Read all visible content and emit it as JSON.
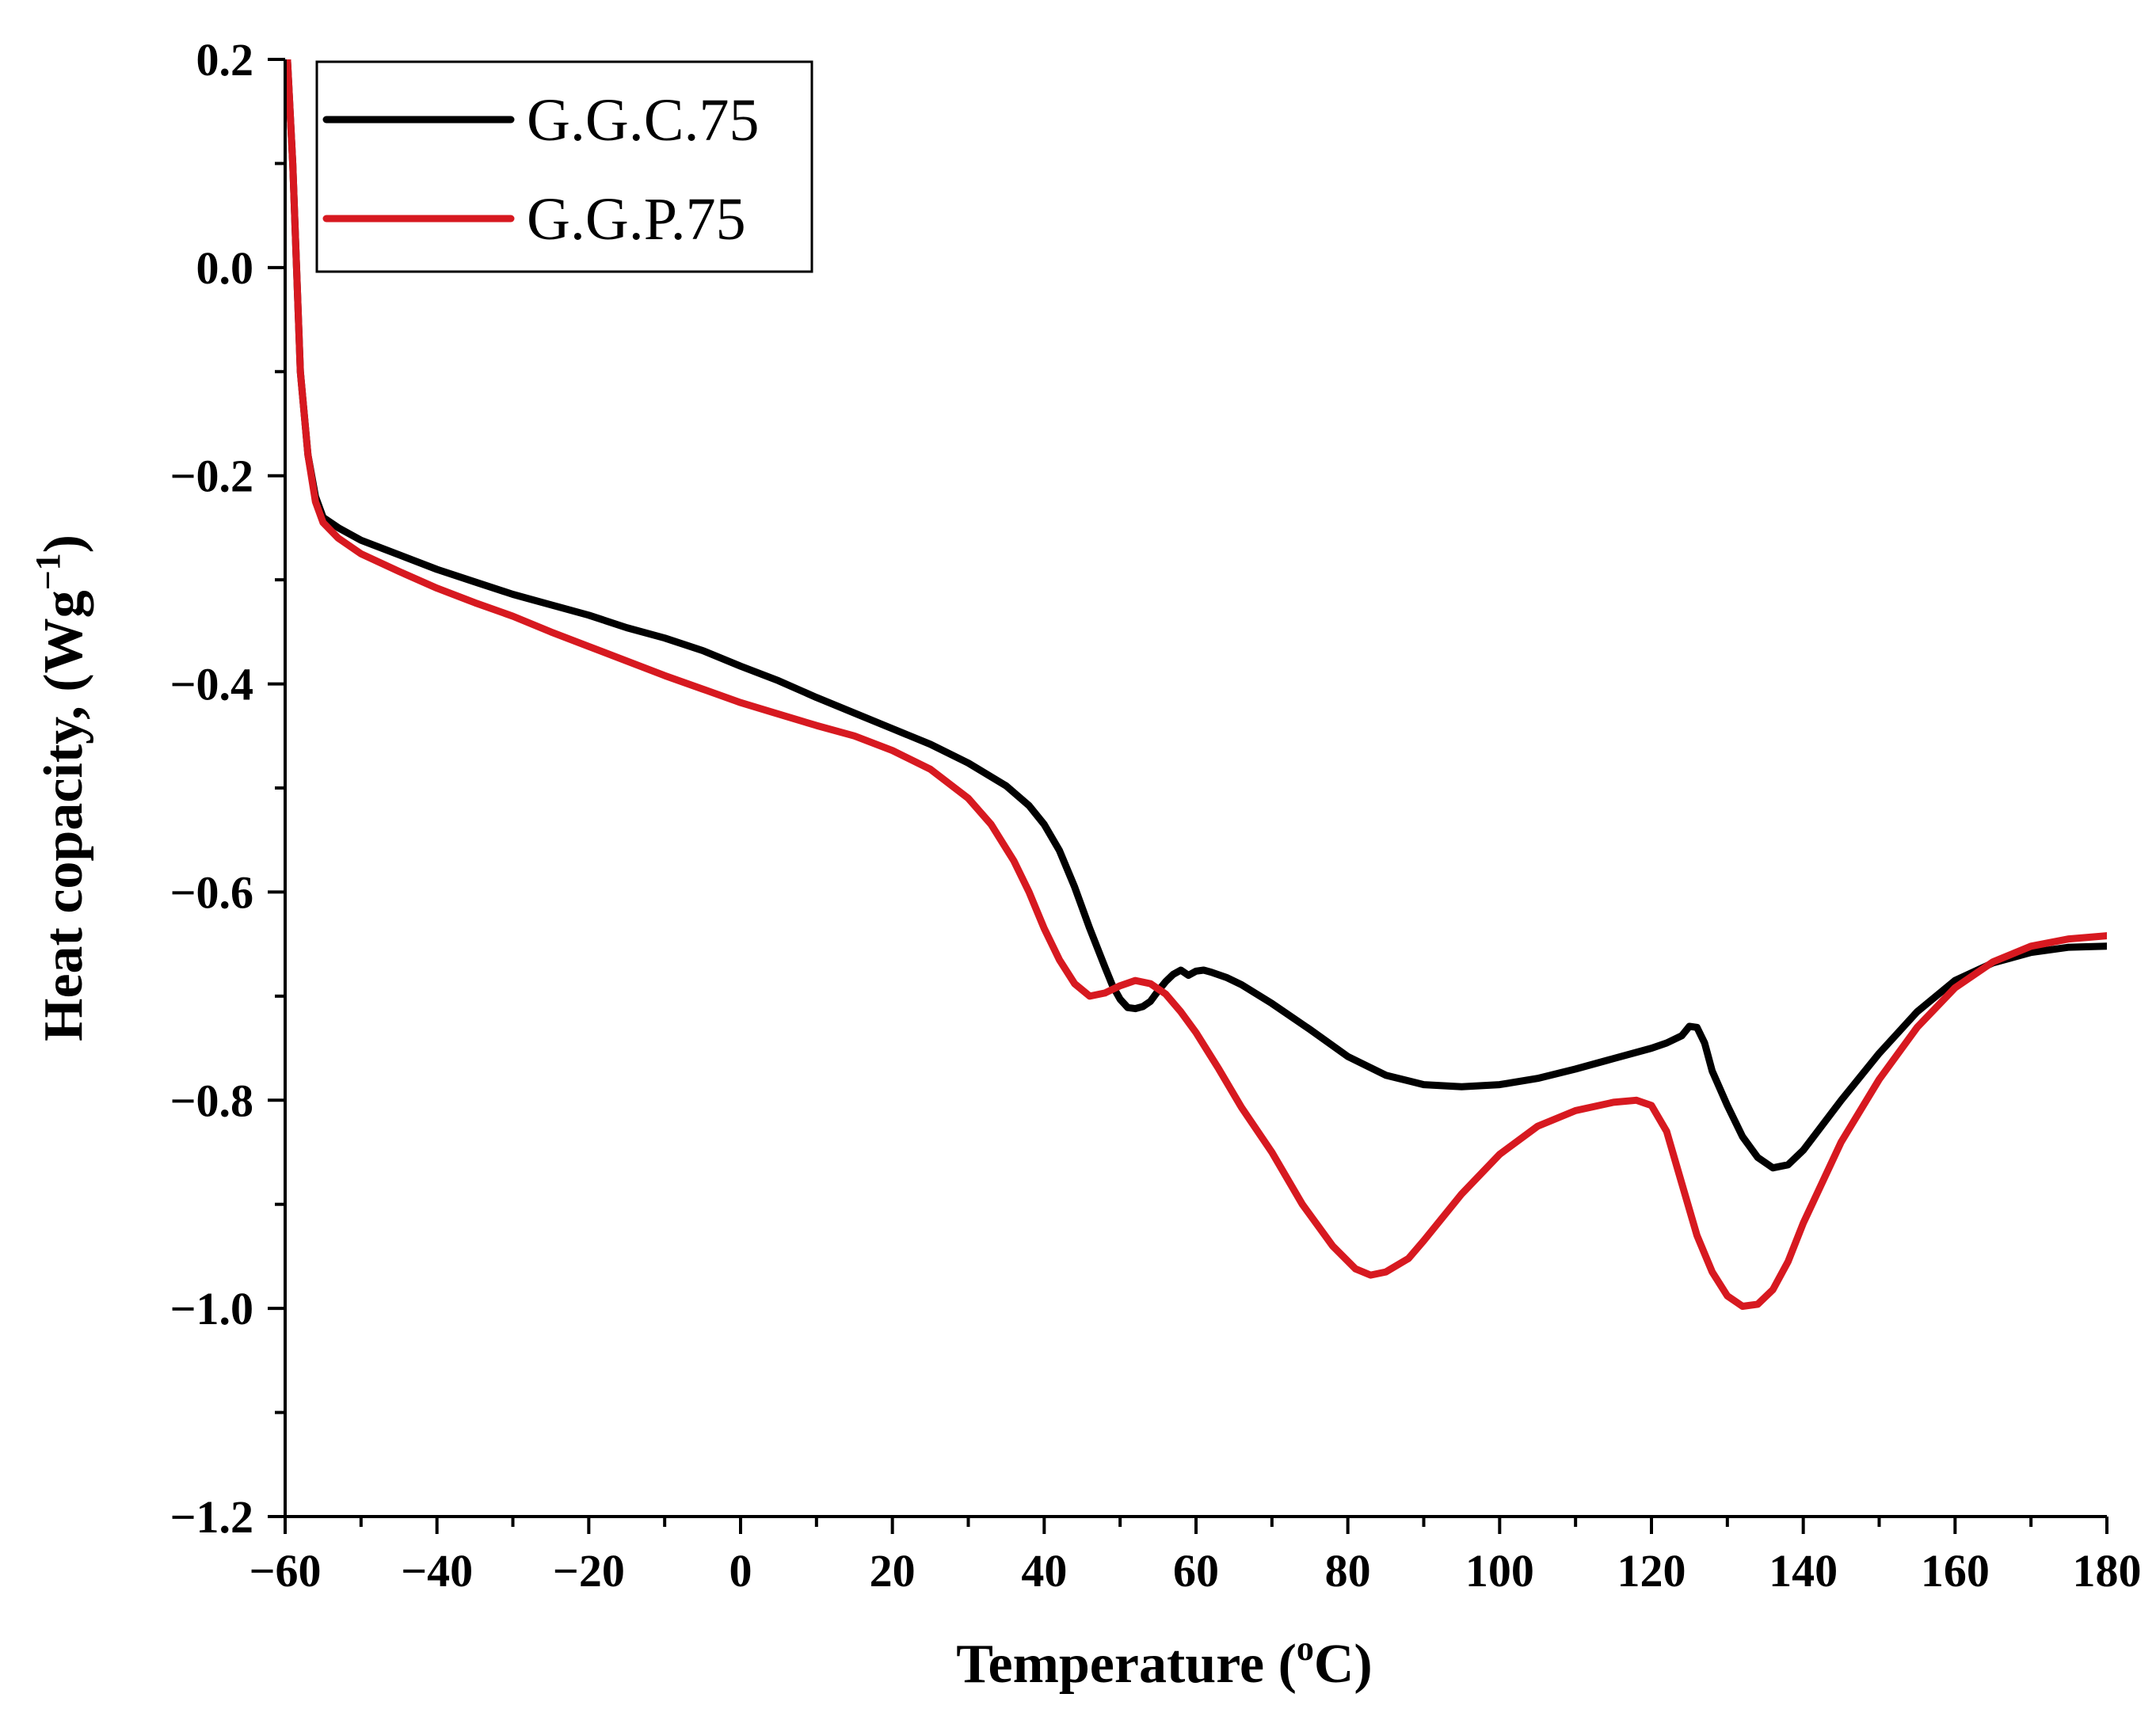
{
  "chart_data": {
    "type": "line",
    "title": "",
    "xlabel": "Temperature",
    "xlabel_unit_prefix": "(",
    "xlabel_unit_sup": "o",
    "xlabel_unit_suffix": "C)",
    "ylabel": "Heat copacity, (Wg",
    "ylabel_sup": "−1",
    "ylabel_suffix": ")",
    "xlim": [
      -60,
      180
    ],
    "ylim": [
      -1.2,
      0.2
    ],
    "x_ticks": [
      -60,
      -40,
      -20,
      0,
      20,
      40,
      60,
      80,
      100,
      120,
      140,
      160,
      180
    ],
    "x_tick_labels": [
      "−60",
      "−40",
      "−20",
      "0",
      "20",
      "40",
      "60",
      "80",
      "100",
      "120",
      "140",
      "160",
      "180"
    ],
    "y_ticks": [
      0.2,
      0.0,
      -0.2,
      -0.4,
      -0.6,
      -0.8,
      -1.0,
      -1.2
    ],
    "y_tick_labels": [
      "0.2",
      "0.0",
      "−0.2",
      "−0.4",
      "−0.6",
      "−0.8",
      "−1.0",
      "−1.2"
    ],
    "grid": false,
    "legend_position": "top-left",
    "series": [
      {
        "name": "G.G.C.75",
        "color": "#000000",
        "points": [
          [
            -59.7,
            0.2
          ],
          [
            -59,
            0.1
          ],
          [
            -58.5,
            0.0
          ],
          [
            -58,
            -0.1
          ],
          [
            -57,
            -0.18
          ],
          [
            -56,
            -0.22
          ],
          [
            -55,
            -0.24
          ],
          [
            -53,
            -0.25
          ],
          [
            -50,
            -0.262
          ],
          [
            -45,
            -0.276
          ],
          [
            -40,
            -0.29
          ],
          [
            -35,
            -0.302
          ],
          [
            -30,
            -0.314
          ],
          [
            -25,
            -0.324
          ],
          [
            -20,
            -0.334
          ],
          [
            -15,
            -0.346
          ],
          [
            -10,
            -0.356
          ],
          [
            -5,
            -0.368
          ],
          [
            0,
            -0.383
          ],
          [
            5,
            -0.397
          ],
          [
            10,
            -0.413
          ],
          [
            15,
            -0.428
          ],
          [
            20,
            -0.443
          ],
          [
            25,
            -0.458
          ],
          [
            30,
            -0.476
          ],
          [
            35,
            -0.498
          ],
          [
            38,
            -0.517
          ],
          [
            40,
            -0.535
          ],
          [
            42,
            -0.56
          ],
          [
            44,
            -0.595
          ],
          [
            46,
            -0.635
          ],
          [
            48,
            -0.672
          ],
          [
            49,
            -0.69
          ],
          [
            50,
            -0.703
          ],
          [
            51,
            -0.711
          ],
          [
            52,
            -0.712
          ],
          [
            53,
            -0.71
          ],
          [
            54,
            -0.705
          ],
          [
            55,
            -0.695
          ],
          [
            56,
            -0.686
          ],
          [
            57,
            -0.679
          ],
          [
            58,
            -0.675
          ],
          [
            59,
            -0.68
          ],
          [
            60,
            -0.676
          ],
          [
            61,
            -0.675
          ],
          [
            62,
            -0.677
          ],
          [
            64,
            -0.682
          ],
          [
            66,
            -0.689
          ],
          [
            70,
            -0.707
          ],
          [
            75,
            -0.732
          ],
          [
            80,
            -0.758
          ],
          [
            85,
            -0.776
          ],
          [
            90,
            -0.785
          ],
          [
            95,
            -0.787
          ],
          [
            100,
            -0.785
          ],
          [
            105,
            -0.779
          ],
          [
            110,
            -0.77
          ],
          [
            115,
            -0.76
          ],
          [
            120,
            -0.75
          ],
          [
            122,
            -0.745
          ],
          [
            124,
            -0.738
          ],
          [
            125,
            -0.729
          ],
          [
            126,
            -0.73
          ],
          [
            127,
            -0.745
          ],
          [
            128,
            -0.772
          ],
          [
            130,
            -0.805
          ],
          [
            132,
            -0.835
          ],
          [
            134,
            -0.855
          ],
          [
            136,
            -0.865
          ],
          [
            138,
            -0.862
          ],
          [
            140,
            -0.848
          ],
          [
            145,
            -0.8
          ],
          [
            150,
            -0.755
          ],
          [
            155,
            -0.715
          ],
          [
            160,
            -0.685
          ],
          [
            165,
            -0.668
          ],
          [
            170,
            -0.658
          ],
          [
            175,
            -0.653
          ],
          [
            180,
            -0.652
          ]
        ]
      },
      {
        "name": "G.G.P.75",
        "color": "#d71920",
        "points": [
          [
            -59.7,
            0.2
          ],
          [
            -59,
            0.1
          ],
          [
            -58.5,
            0.0
          ],
          [
            -58,
            -0.1
          ],
          [
            -57,
            -0.18
          ],
          [
            -56,
            -0.225
          ],
          [
            -55,
            -0.245
          ],
          [
            -53,
            -0.26
          ],
          [
            -50,
            -0.275
          ],
          [
            -45,
            -0.292
          ],
          [
            -40,
            -0.308
          ],
          [
            -35,
            -0.322
          ],
          [
            -30,
            -0.335
          ],
          [
            -25,
            -0.35
          ],
          [
            -20,
            -0.364
          ],
          [
            -15,
            -0.378
          ],
          [
            -10,
            -0.392
          ],
          [
            -5,
            -0.405
          ],
          [
            0,
            -0.418
          ],
          [
            5,
            -0.429
          ],
          [
            10,
            -0.44
          ],
          [
            15,
            -0.45
          ],
          [
            20,
            -0.464
          ],
          [
            25,
            -0.482
          ],
          [
            30,
            -0.51
          ],
          [
            33,
            -0.535
          ],
          [
            36,
            -0.57
          ],
          [
            38,
            -0.6
          ],
          [
            40,
            -0.635
          ],
          [
            42,
            -0.665
          ],
          [
            44,
            -0.688
          ],
          [
            46,
            -0.7
          ],
          [
            48,
            -0.697
          ],
          [
            50,
            -0.69
          ],
          [
            52,
            -0.685
          ],
          [
            54,
            -0.688
          ],
          [
            56,
            -0.698
          ],
          [
            58,
            -0.715
          ],
          [
            60,
            -0.735
          ],
          [
            63,
            -0.77
          ],
          [
            66,
            -0.807
          ],
          [
            70,
            -0.85
          ],
          [
            74,
            -0.9
          ],
          [
            78,
            -0.94
          ],
          [
            81,
            -0.962
          ],
          [
            83,
            -0.968
          ],
          [
            85,
            -0.965
          ],
          [
            88,
            -0.952
          ],
          [
            90,
            -0.935
          ],
          [
            95,
            -0.89
          ],
          [
            100,
            -0.852
          ],
          [
            105,
            -0.825
          ],
          [
            110,
            -0.81
          ],
          [
            115,
            -0.802
          ],
          [
            118,
            -0.8
          ],
          [
            120,
            -0.805
          ],
          [
            122,
            -0.83
          ],
          [
            124,
            -0.88
          ],
          [
            126,
            -0.93
          ],
          [
            128,
            -0.965
          ],
          [
            130,
            -0.988
          ],
          [
            132,
            -0.998
          ],
          [
            134,
            -0.996
          ],
          [
            136,
            -0.982
          ],
          [
            138,
            -0.955
          ],
          [
            140,
            -0.918
          ],
          [
            145,
            -0.84
          ],
          [
            150,
            -0.78
          ],
          [
            155,
            -0.73
          ],
          [
            160,
            -0.692
          ],
          [
            165,
            -0.667
          ],
          [
            170,
            -0.652
          ],
          [
            175,
            -0.645
          ],
          [
            180,
            -0.642
          ]
        ]
      }
    ]
  }
}
